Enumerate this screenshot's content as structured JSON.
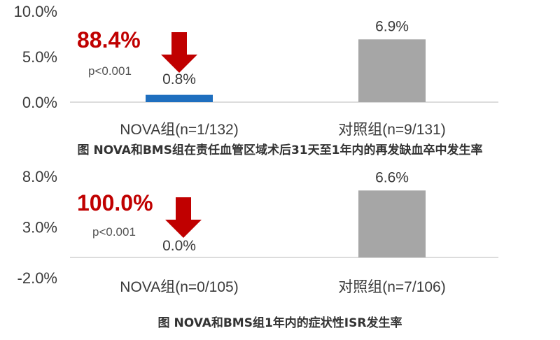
{
  "chart_data": [
    {
      "type": "bar",
      "caption": "图 NOVA和BMS组在责任血管区域术后31天至1年内的再发缺血卒中发生率",
      "categories": [
        "NOVA组(n=1/132)",
        "对照组(n=9/131)"
      ],
      "values": [
        0.8,
        6.9
      ],
      "data_labels": [
        "0.8%",
        "6.9%"
      ],
      "bar_colors": [
        "#1f6fbf",
        "#a6a6a6"
      ],
      "yticks": [
        "0.0%",
        "5.0%",
        "10.0%"
      ],
      "ytick_values": [
        0,
        5,
        10
      ],
      "ylim": [
        0,
        10
      ],
      "annotation": {
        "reduction": "88.4%",
        "pvalue": "p<0.001",
        "color": "#c00000"
      }
    },
    {
      "type": "bar",
      "caption": "图 NOVA和BMS组1年内的症状性ISR发生率",
      "categories": [
        "NOVA组(n=0/105)",
        "对照组(n=7/106)"
      ],
      "values": [
        0.0,
        6.6
      ],
      "data_labels": [
        "0.0%",
        "6.6%"
      ],
      "bar_colors": [
        "#1f6fbf",
        "#a6a6a6"
      ],
      "yticks": [
        "-2.0%",
        "3.0%",
        "8.0%"
      ],
      "ytick_values": [
        -2,
        3,
        8
      ],
      "ylim": [
        -2,
        8
      ],
      "annotation": {
        "reduction": "100.0%",
        "pvalue": "p<0.001",
        "color": "#c00000"
      }
    }
  ]
}
